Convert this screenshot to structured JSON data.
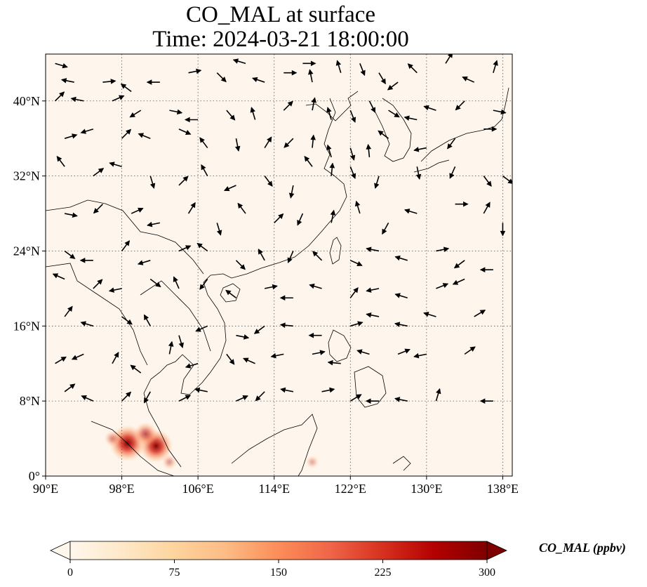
{
  "title_line1": "CO_MAL at surface",
  "title_line2": "Time: 2024-03-21 18:00:00",
  "map": {
    "lon_range": [
      90,
      139
    ],
    "lat_range": [
      0,
      45
    ],
    "x_ticks": [
      {
        "value": 90,
        "label": "90°E"
      },
      {
        "value": 98,
        "label": "98°E"
      },
      {
        "value": 106,
        "label": "106°E"
      },
      {
        "value": 114,
        "label": "114°E"
      },
      {
        "value": 122,
        "label": "122°E"
      },
      {
        "value": 130,
        "label": "130°E"
      },
      {
        "value": 138,
        "label": "138°E"
      }
    ],
    "y_ticks": [
      {
        "value": 0,
        "label": "0°"
      },
      {
        "value": 8,
        "label": "8°N"
      },
      {
        "value": 16,
        "label": "16°N"
      },
      {
        "value": 24,
        "label": "24°N"
      },
      {
        "value": 32,
        "label": "32°N"
      },
      {
        "value": 40,
        "label": "40°N"
      }
    ],
    "gridlines": "dotted",
    "background_color": "#fef6ec",
    "hotspots": [
      {
        "lon": 98.6,
        "lat": 3.5,
        "value": 280
      },
      {
        "lon": 101.6,
        "lat": 3.2,
        "value": 250
      },
      {
        "lon": 100.5,
        "lat": 4.5,
        "value": 150
      },
      {
        "lon": 97.0,
        "lat": 4.0,
        "value": 80
      },
      {
        "lon": 103.0,
        "lat": 1.5,
        "value": 70
      },
      {
        "lon": 118.0,
        "lat": 1.5,
        "value": 50
      }
    ]
  },
  "colorbar": {
    "label": "CO_MAL (ppbv)",
    "min": 0,
    "max": 300,
    "ticks": [
      {
        "value": 0,
        "label": "0"
      },
      {
        "value": 75,
        "label": "75"
      },
      {
        "value": 150,
        "label": "150"
      },
      {
        "value": 225,
        "label": "225"
      },
      {
        "value": 300,
        "label": "300"
      }
    ],
    "colormap": [
      "#fff7ec",
      "#fee8c8",
      "#fdd49e",
      "#fdbb84",
      "#fc8d59",
      "#ef6548",
      "#d7301f",
      "#b30000",
      "#7f0000"
    ],
    "extend": "both"
  },
  "wind_vectors": [
    [
      91,
      44,
      1,
      -0.3
    ],
    [
      93,
      42,
      -1,
      0.2
    ],
    [
      96,
      42,
      1,
      0.1
    ],
    [
      99,
      41,
      -0.8,
      0.6
    ],
    [
      102,
      42,
      -1,
      0
    ],
    [
      105,
      43,
      1,
      0.2
    ],
    [
      108,
      43,
      0.7,
      -0.7
    ],
    [
      111,
      44,
      -1,
      0.3
    ],
    [
      113,
      42,
      -0.9,
      0.3
    ],
    [
      115,
      43,
      1,
      0
    ],
    [
      117,
      44,
      1,
      0
    ],
    [
      118,
      42,
      -0.2,
      1
    ],
    [
      121,
      43,
      -0.3,
      1
    ],
    [
      123,
      44,
      0.4,
      -1
    ],
    [
      125,
      43,
      0.6,
      -1
    ],
    [
      127,
      42,
      -0.8,
      -0.6
    ],
    [
      129,
      43,
      -0.7,
      0.7
    ],
    [
      132,
      44,
      0.5,
      0.8
    ],
    [
      135,
      42,
      -0.9,
      0.4
    ],
    [
      137,
      43,
      0.3,
      1
    ],
    [
      91,
      40,
      0.6,
      0.6
    ],
    [
      94,
      40,
      -1,
      0.2
    ],
    [
      97,
      40,
      0.9,
      0.4
    ],
    [
      100,
      39,
      -0.8,
      -0.5
    ],
    [
      103,
      39,
      1,
      -0.2
    ],
    [
      106,
      38,
      -1,
      0
    ],
    [
      109,
      39,
      0.6,
      -0.7
    ],
    [
      112,
      38,
      -0.3,
      1
    ],
    [
      115,
      39,
      0.7,
      0.7
    ],
    [
      118,
      39,
      0.2,
      1
    ],
    [
      120,
      38,
      -0.3,
      1
    ],
    [
      122,
      39,
      0.4,
      -1
    ],
    [
      124,
      40,
      0.5,
      -1
    ],
    [
      126,
      39,
      0.8,
      -0.5
    ],
    [
      129,
      38,
      -1,
      0.2
    ],
    [
      131,
      39,
      -0.9,
      0.3
    ],
    [
      134,
      40,
      -0.7,
      -0.7
    ],
    [
      137,
      39,
      1,
      -0.2
    ],
    [
      92,
      36,
      1,
      0.3
    ],
    [
      95,
      37,
      -1,
      -0.3
    ],
    [
      98,
      36,
      0.7,
      0.7
    ],
    [
      101,
      36,
      -1,
      0.4
    ],
    [
      104,
      37,
      0.9,
      -0.4
    ],
    [
      107,
      35,
      -0.6,
      0.8
    ],
    [
      110,
      36,
      0.2,
      -1
    ],
    [
      113,
      35,
      0.5,
      0.8
    ],
    [
      116,
      36,
      -0.7,
      -0.7
    ],
    [
      118,
      35,
      0.1,
      1
    ],
    [
      120,
      34,
      -0.3,
      1
    ],
    [
      122,
      35,
      0.3,
      -1
    ],
    [
      124,
      34,
      -0.1,
      1
    ],
    [
      126,
      36,
      -0.8,
      0.6
    ],
    [
      130,
      35,
      -1,
      -0.2
    ],
    [
      133,
      36,
      -0.6,
      -0.8
    ],
    [
      136,
      37,
      1,
      0
    ],
    [
      92,
      33,
      -0.6,
      0.8
    ],
    [
      95,
      32,
      0.8,
      0.6
    ],
    [
      98,
      33,
      -1,
      0.3
    ],
    [
      101,
      32,
      0.3,
      -1
    ],
    [
      104,
      31,
      0.7,
      0.7
    ],
    [
      107,
      32,
      -0.5,
      0.9
    ],
    [
      110,
      31,
      -0.9,
      -0.4
    ],
    [
      113,
      32,
      0.6,
      -0.8
    ],
    [
      116,
      31,
      -0.2,
      -1
    ],
    [
      118,
      33,
      -0.6,
      0.8
    ],
    [
      120,
      32,
      0.1,
      1
    ],
    [
      122,
      33,
      0.4,
      -1
    ],
    [
      125,
      32,
      -0.3,
      -1
    ],
    [
      129,
      33,
      0.2,
      -1
    ],
    [
      133,
      33,
      -0.4,
      -0.9
    ],
    [
      136,
      32,
      0.6,
      -0.8
    ],
    [
      138,
      32,
      0.8,
      -0.6
    ],
    [
      92,
      28,
      1,
      -0.2
    ],
    [
      96,
      29,
      -0.7,
      -0.7
    ],
    [
      99,
      28,
      0.9,
      0.4
    ],
    [
      102,
      27,
      -1,
      -0.2
    ],
    [
      105,
      28,
      0.5,
      0.8
    ],
    [
      108,
      27,
      0.3,
      -1
    ],
    [
      111,
      28,
      -0.6,
      0.8
    ],
    [
      114,
      27,
      0.7,
      0.7
    ],
    [
      117,
      28,
      -0.4,
      -0.9
    ],
    [
      120,
      27,
      0.2,
      1
    ],
    [
      123,
      28,
      -0.3,
      1
    ],
    [
      126,
      27,
      -0.5,
      -0.9
    ],
    [
      129,
      28,
      -1,
      0.3
    ],
    [
      133,
      29,
      1,
      0
    ],
    [
      136,
      28,
      0.5,
      0.9
    ],
    [
      138,
      27,
      0,
      -1
    ],
    [
      92,
      24,
      0.8,
      -0.6
    ],
    [
      95,
      23,
      -1,
      0
    ],
    [
      98,
      24,
      0.6,
      0.8
    ],
    [
      101,
      23,
      -1,
      -0.3
    ],
    [
      104,
      24,
      0.9,
      0.4
    ],
    [
      107,
      24,
      -0.8,
      0.6
    ],
    [
      110,
      23,
      0.7,
      -0.7
    ],
    [
      113,
      23,
      -0.5,
      0.9
    ],
    [
      116,
      24,
      -0.4,
      -0.9
    ],
    [
      119,
      23,
      -0.7,
      0.7
    ],
    [
      122,
      23,
      0.9,
      -0.4
    ],
    [
      125,
      24,
      -1,
      0.2
    ],
    [
      128,
      23,
      -1,
      0.3
    ],
    [
      131,
      24,
      1,
      0.2
    ],
    [
      134,
      23,
      -0.8,
      -0.6
    ],
    [
      137,
      22,
      -1,
      0
    ],
    [
      92,
      21,
      -0.9,
      0.4
    ],
    [
      95,
      20,
      0.7,
      0.7
    ],
    [
      98,
      20,
      -1,
      -0.2
    ],
    [
      101,
      21,
      0.8,
      -0.6
    ],
    [
      104,
      20,
      -0.4,
      0.9
    ],
    [
      107,
      21,
      -0.6,
      -0.8
    ],
    [
      110,
      19,
      -0.8,
      0.6
    ],
    [
      113,
      20,
      1,
      0.2
    ],
    [
      116,
      19,
      -1,
      0
    ],
    [
      119,
      20,
      -1,
      0.3
    ],
    [
      122,
      19,
      0.6,
      0.8
    ],
    [
      125,
      20,
      -1,
      -0.2
    ],
    [
      128,
      19,
      -1,
      0.3
    ],
    [
      131,
      20,
      1,
      0.4
    ],
    [
      134,
      21,
      -0.9,
      -0.4
    ],
    [
      92,
      17,
      0.6,
      0.8
    ],
    [
      95,
      16,
      -1,
      0.3
    ],
    [
      98,
      17,
      0.8,
      -0.6
    ],
    [
      101,
      16,
      -0.5,
      0.9
    ],
    [
      104,
      15,
      0.3,
      -1
    ],
    [
      107,
      16,
      -0.9,
      -0.4
    ],
    [
      110,
      15,
      1,
      -0.2
    ],
    [
      113,
      16,
      -0.8,
      -0.6
    ],
    [
      116,
      16,
      -1,
      0.1
    ],
    [
      119,
      15,
      -1,
      0
    ],
    [
      122,
      16,
      1,
      0.3
    ],
    [
      125,
      17,
      -1,
      0.2
    ],
    [
      128,
      16,
      -1,
      0.2
    ],
    [
      131,
      17,
      -1,
      0.3
    ],
    [
      135,
      17,
      1,
      0.6
    ],
    [
      91,
      12,
      1,
      0.6
    ],
    [
      94,
      13,
      -0.9,
      -0.4
    ],
    [
      97,
      12,
      0.5,
      0.9
    ],
    [
      100,
      11,
      -0.8,
      0.6
    ],
    [
      103,
      13,
      0.2,
      1
    ],
    [
      106,
      12,
      -1,
      -0.3
    ],
    [
      109,
      13,
      0.6,
      -0.8
    ],
    [
      112,
      12,
      -0.9,
      0.4
    ],
    [
      115,
      13,
      -1,
      -0.2
    ],
    [
      118,
      13,
      1,
      0.2
    ],
    [
      121,
      12,
      -1,
      0.1
    ],
    [
      124,
      13,
      -1,
      0.3
    ],
    [
      127,
      13,
      1,
      0.4
    ],
    [
      130,
      13,
      -1,
      -0.2
    ],
    [
      134,
      13,
      1,
      0.7
    ],
    [
      92,
      9,
      0.8,
      0.6
    ],
    [
      95,
      8,
      -0.9,
      0.4
    ],
    [
      98,
      8,
      0.7,
      0.7
    ],
    [
      101,
      9,
      -0.5,
      -0.9
    ],
    [
      104,
      8,
      1,
      0.5
    ],
    [
      107,
      9,
      -1,
      0.2
    ],
    [
      110,
      8,
      0.9,
      0.4
    ],
    [
      113,
      9,
      -0.7,
      -0.7
    ],
    [
      116,
      9,
      -1,
      0.2
    ],
    [
      119,
      9,
      1,
      0.2
    ],
    [
      122,
      8,
      1,
      0.6
    ],
    [
      125,
      8,
      -1,
      0
    ],
    [
      128,
      8,
      -1,
      0.2
    ],
    [
      131,
      8,
      0.3,
      1
    ],
    [
      137,
      8,
      -1,
      0
    ]
  ]
}
